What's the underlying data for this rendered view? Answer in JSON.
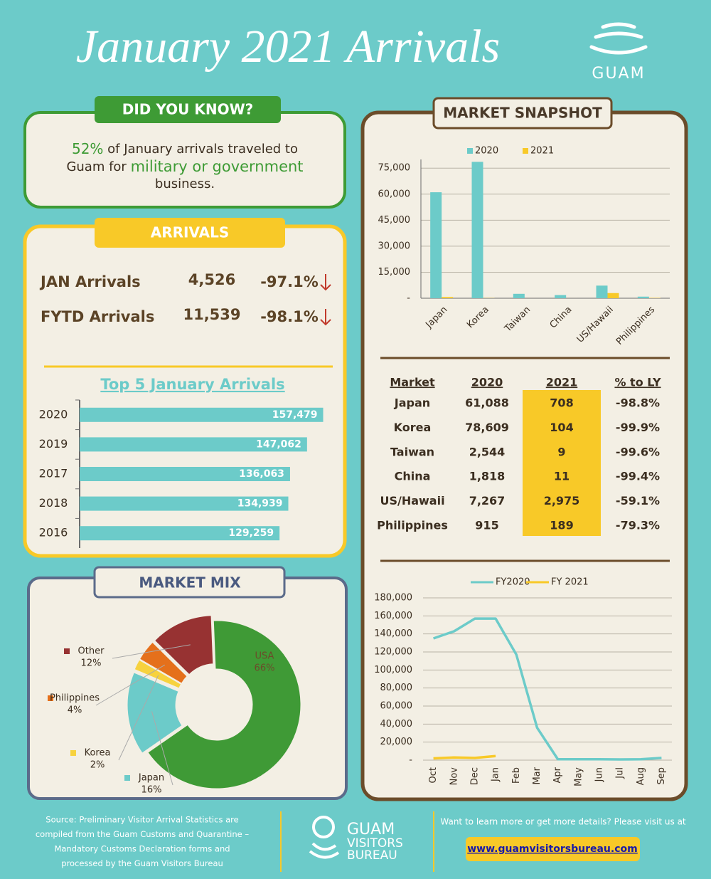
{
  "header": {
    "title": "January 2021 Arrivals",
    "logo": "GUAM"
  },
  "did_you_know": {
    "heading": "DID YOU KNOW?",
    "parts": [
      "52%",
      " of January arrivals traveled to",
      "Guam for ",
      "military or government",
      "business."
    ]
  },
  "arrivals": {
    "heading": "ARRIVALS",
    "rows": [
      {
        "label": "JAN Arrivals",
        "value": "4,526",
        "change": "-97.1%"
      },
      {
        "label": "FYTD Arrivals",
        "value": "11,539",
        "change": "-98.1%"
      }
    ]
  },
  "sections": {
    "market_mix": "MARKET MIX",
    "market_snapshot": "MARKET SNAPSHOT"
  },
  "chart_data": [
    {
      "type": "bar",
      "orientation": "horizontal",
      "title": "Top 5 January Arrivals",
      "categories": [
        "2020",
        "2019",
        "2017",
        "2018",
        "2016"
      ],
      "values": [
        157479,
        147062,
        136063,
        134939,
        129259
      ],
      "value_labels": [
        "157,479",
        "147,062",
        "136,063",
        "134,939",
        "129,259"
      ],
      "color": "#6ccbc9",
      "xlim": [
        0,
        160000
      ]
    },
    {
      "type": "bar",
      "orientation": "vertical",
      "categories": [
        "Japan",
        "Korea",
        "Taiwan",
        "China",
        "US/Hawaii",
        "Philippines"
      ],
      "series": [
        {
          "name": "2020",
          "color": "#6ccbc9",
          "values": [
            61088,
            78609,
            2544,
            1818,
            7267,
            915
          ]
        },
        {
          "name": "2021",
          "color": "#f8c928",
          "values": [
            708,
            104,
            9,
            11,
            2975,
            189
          ]
        }
      ],
      "ylim": [
        0,
        80000
      ],
      "yticks": [
        {
          "value": 0,
          "label": "-"
        },
        {
          "value": 15000,
          "label": "15,000"
        },
        {
          "value": 30000,
          "label": "30,000"
        },
        {
          "value": 45000,
          "label": "45,000"
        },
        {
          "value": 60000,
          "label": "60,000"
        },
        {
          "value": 75000,
          "label": "75,000"
        }
      ],
      "grid": true,
      "legend": "top"
    },
    {
      "type": "pie",
      "donut": true,
      "categories": [
        "USA",
        "Japan",
        "Korea",
        "Philippines",
        "Other"
      ],
      "values": [
        66,
        16,
        2,
        4,
        12
      ],
      "value_labels": [
        "66%",
        "16%",
        "2%",
        "4%",
        "12%"
      ],
      "colors": [
        "#3f9a36",
        "#6ccbc9",
        "#f7d23e",
        "#e5701b",
        "#973232"
      ]
    },
    {
      "type": "line",
      "categories": [
        "Oct",
        "Nov",
        "Dec",
        "Jan",
        "Feb",
        "Mar",
        "Apr",
        "May",
        "Jun",
        "Jul",
        "Aug",
        "Sep"
      ],
      "series": [
        {
          "name": "FY2020",
          "color": "#6ccbc9",
          "values": [
            135000,
            143000,
            157000,
            157000,
            117000,
            36000,
            1000,
            1000,
            1000,
            800,
            1000,
            2500
          ]
        },
        {
          "name": "FY 2021",
          "color": "#f8c928",
          "values": [
            2000,
            3000,
            2500,
            4526,
            null,
            null,
            null,
            null,
            null,
            null,
            null,
            null
          ]
        }
      ],
      "ylim": [
        0,
        180000
      ],
      "yticks": [
        {
          "value": 0,
          "label": "-"
        },
        {
          "value": 20000,
          "label": "20,000"
        },
        {
          "value": 40000,
          "label": "40,000"
        },
        {
          "value": 60000,
          "label": "60,000"
        },
        {
          "value": 80000,
          "label": "80,000"
        },
        {
          "value": 100000,
          "label": "100,000"
        },
        {
          "value": 120000,
          "label": "120,000"
        },
        {
          "value": 140000,
          "label": "140,000"
        },
        {
          "value": 160000,
          "label": "160,000"
        },
        {
          "value": 180000,
          "label": "180,000"
        }
      ],
      "grid": true,
      "legend": "top"
    }
  ],
  "table": {
    "header": [
      "Market",
      "2020",
      "2021",
      "% to LY"
    ],
    "rows": [
      [
        "Japan",
        "61,088",
        "708",
        "-98.8%"
      ],
      [
        "Korea",
        "78,609",
        "104",
        "-99.9%"
      ],
      [
        "Taiwan",
        "2,544",
        "9",
        "-99.6%"
      ],
      [
        "China",
        "1,818",
        "11",
        "-99.4%"
      ],
      [
        "US/Hawaii",
        "7,267",
        "2,975",
        "-59.1%"
      ],
      [
        "Philippines",
        "915",
        "189",
        "-79.3%"
      ]
    ]
  },
  "footer": {
    "source": [
      "Source: Preliminary Visitor Arrival Statistics are",
      "compiled from the Guam Customs and Quarantine –",
      "Mandatory Customs  Declaration forms and",
      "processed by the Guam Visitors Bureau"
    ],
    "logo": [
      "GUAM",
      "VISITORS",
      "BUREAU"
    ],
    "cta": "Want to learn more or get more details? Please visit us at",
    "url": "www.guamvisitorsbureau.com"
  }
}
